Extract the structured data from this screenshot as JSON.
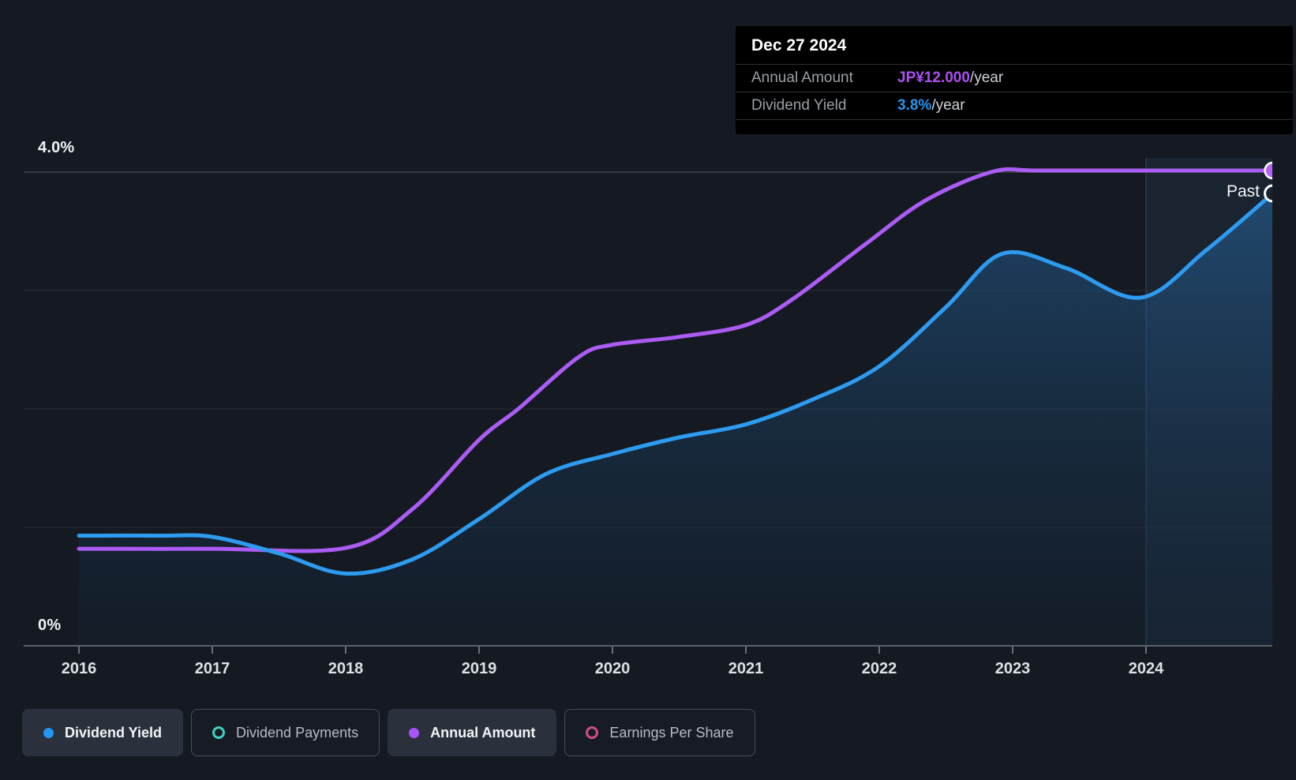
{
  "tooltip": {
    "date": "Dec 27 2024",
    "rows": [
      {
        "label": "Annual Amount",
        "value": "JP¥12.000",
        "suffix": "/year",
        "color": "#ab4ff2"
      },
      {
        "label": "Dividend Yield",
        "value": "3.8%",
        "suffix": "/year",
        "color": "#2196f3"
      }
    ]
  },
  "axis": {
    "y_top_label": "4.0%",
    "y_bottom_label": "0%",
    "years": [
      "2016",
      "2017",
      "2018",
      "2019",
      "2020",
      "2021",
      "2022",
      "2023",
      "2024"
    ],
    "past_label": "Past"
  },
  "legend": [
    {
      "label": "Dividend Yield",
      "marker": "dot",
      "color": "#2196f3",
      "active": true
    },
    {
      "label": "Dividend Payments",
      "marker": "ring",
      "color": "#41cfc2",
      "active": false
    },
    {
      "label": "Annual Amount",
      "marker": "dot",
      "color": "#a855f7",
      "active": true
    },
    {
      "label": "Earnings Per Share",
      "marker": "ring",
      "color": "#cf4b87",
      "active": false
    }
  ],
  "chart_data": {
    "type": "line",
    "x_range": [
      2016,
      2024.95
    ],
    "x_ticks": [
      2016,
      2017,
      2018,
      2019,
      2020,
      2021,
      2022,
      2023,
      2024
    ],
    "grid": true,
    "y_left": {
      "unit": "%",
      "min": 0,
      "max": 4,
      "gridlines_pct": [
        1,
        2,
        3,
        4
      ]
    },
    "past_band_start": 2024,
    "series": [
      {
        "name": "Dividend Yield",
        "unit": "%",
        "color": "#2d9bf0",
        "area": true,
        "end_marker": "hollow",
        "points": [
          {
            "x": 2016.0,
            "y": 0.93
          },
          {
            "x": 2016.6,
            "y": 0.93
          },
          {
            "x": 2017.0,
            "y": 0.92
          },
          {
            "x": 2017.5,
            "y": 0.78
          },
          {
            "x": 2018.0,
            "y": 0.61
          },
          {
            "x": 2018.5,
            "y": 0.73
          },
          {
            "x": 2019.0,
            "y": 1.07
          },
          {
            "x": 2019.5,
            "y": 1.45
          },
          {
            "x": 2020.0,
            "y": 1.62
          },
          {
            "x": 2020.5,
            "y": 1.76
          },
          {
            "x": 2021.0,
            "y": 1.87
          },
          {
            "x": 2021.5,
            "y": 2.08
          },
          {
            "x": 2022.0,
            "y": 2.36
          },
          {
            "x": 2022.5,
            "y": 2.86
          },
          {
            "x": 2022.92,
            "y": 3.31
          },
          {
            "x": 2023.4,
            "y": 3.19
          },
          {
            "x": 2023.96,
            "y": 2.94
          },
          {
            "x": 2024.45,
            "y": 3.34
          },
          {
            "x": 2024.95,
            "y": 3.82
          }
        ]
      },
      {
        "name": "Annual Amount",
        "unit": "JP¥/year",
        "color": "#ab5cf4",
        "area": false,
        "end_marker": "solid",
        "amount_max": 12,
        "points": [
          {
            "x": 2016.0,
            "y": 2.45
          },
          {
            "x": 2017.0,
            "y": 2.45
          },
          {
            "x": 2018.0,
            "y": 2.47
          },
          {
            "x": 2018.5,
            "y": 3.45
          },
          {
            "x": 2019.0,
            "y": 5.2
          },
          {
            "x": 2019.3,
            "y": 6.0
          },
          {
            "x": 2019.75,
            "y": 7.3
          },
          {
            "x": 2020.0,
            "y": 7.6
          },
          {
            "x": 2020.5,
            "y": 7.8
          },
          {
            "x": 2021.0,
            "y": 8.1
          },
          {
            "x": 2021.35,
            "y": 8.75
          },
          {
            "x": 2021.9,
            "y": 10.15
          },
          {
            "x": 2022.35,
            "y": 11.25
          },
          {
            "x": 2022.85,
            "y": 11.97
          },
          {
            "x": 2023.2,
            "y": 12.0
          },
          {
            "x": 2024.0,
            "y": 12.0
          },
          {
            "x": 2024.95,
            "y": 12.0
          }
        ]
      }
    ]
  }
}
